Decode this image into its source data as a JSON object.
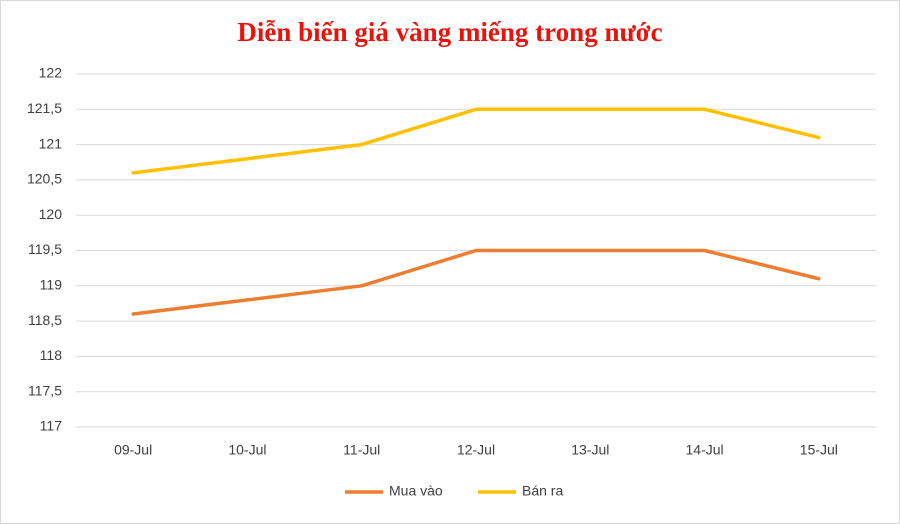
{
  "chart_data": {
    "type": "line",
    "title": "Diễn biến giá vàng miếng trong nước",
    "categories": [
      "09-Jul",
      "10-Jul",
      "11-Jul",
      "12-Jul",
      "13-Jul",
      "14-Jul",
      "15-Jul"
    ],
    "series": [
      {
        "name": "Mua vào",
        "color": "#ed7d31",
        "values": [
          118.6,
          118.8,
          119,
          119.5,
          119.5,
          119.5,
          119.1
        ]
      },
      {
        "name": "Bán ra",
        "color": "#ffc000",
        "values": [
          120.6,
          120.8,
          121,
          121.5,
          121.5,
          121.5,
          121.1
        ]
      }
    ],
    "ylim": [
      117,
      122
    ],
    "yticks": [
      117,
      {
        "value": 117.5,
        "label": "117,5"
      },
      118,
      {
        "value": 118.5,
        "label": "118,5"
      },
      119,
      {
        "value": 119.5,
        "label": "119,5"
      },
      120,
      {
        "value": 120.5,
        "label": "120,5"
      },
      121,
      {
        "value": 121.5,
        "label": "121,5"
      },
      122
    ],
    "grid": true,
    "legend": "bottom"
  }
}
